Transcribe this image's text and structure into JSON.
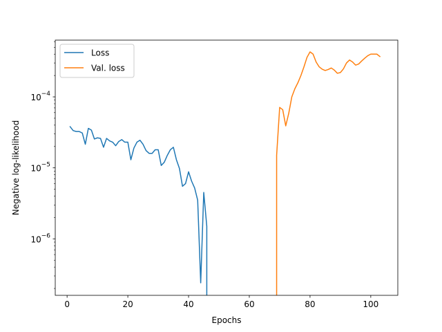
{
  "chart_data": {
    "type": "line",
    "title": "",
    "xlabel": "Epochs",
    "ylabel": "Negative log-likelihood",
    "xlim": [
      -3.9,
      108.9
    ],
    "ylim": [
      1.6e-07,
      0.00063
    ],
    "yscale": "log",
    "grid": false,
    "legend_position": "top-left",
    "x_ticks": [
      0,
      20,
      40,
      60,
      80,
      100
    ],
    "x_tick_labels": [
      "0",
      "20",
      "40",
      "60",
      "80",
      "100"
    ],
    "y_ticks": [
      1e-06,
      1e-05,
      0.0001
    ],
    "y_tick_labels": [
      {
        "base": "10",
        "exp": "−6"
      },
      {
        "base": "10",
        "exp": "−5"
      },
      {
        "base": "10",
        "exp": "−4"
      }
    ],
    "series": [
      {
        "name": "Loss",
        "color": "#1f77b4",
        "x": [
          1,
          2,
          3,
          4,
          5,
          6,
          7,
          8,
          9,
          10,
          11,
          12,
          13,
          14,
          15,
          16,
          17,
          18,
          19,
          20,
          21,
          22,
          23,
          24,
          25,
          26,
          27,
          28,
          29,
          30,
          31,
          32,
          33,
          34,
          35,
          36,
          37,
          38,
          39,
          40,
          41,
          42,
          43,
          44,
          45,
          46,
          46
        ],
        "y": [
          3.8e-05,
          3.35e-05,
          3.25e-05,
          3.25e-05,
          3.1e-05,
          2.15e-05,
          3.6e-05,
          3.4e-05,
          2.55e-05,
          2.65e-05,
          2.6e-05,
          1.95e-05,
          2.6e-05,
          2.4e-05,
          2.3e-05,
          2.05e-05,
          2.35e-05,
          2.5e-05,
          2.3e-05,
          2.3e-05,
          1.3e-05,
          1.9e-05,
          2.3e-05,
          2.45e-05,
          2.15e-05,
          1.75e-05,
          1.6e-05,
          1.6e-05,
          1.8e-05,
          1.8e-05,
          1.08e-05,
          1.2e-05,
          1.5e-05,
          1.8e-05,
          1.95e-05,
          1.3e-05,
          9.8e-06,
          5.5e-06,
          6e-06,
          8.8e-06,
          6.5e-06,
          5.2e-06,
          3.5e-06,
          2.4e-07,
          4.5e-06,
          1.5e-06,
          1.6e-07
        ]
      },
      {
        "name": "Val. loss",
        "color": "#ff7f0e",
        "x": [
          69,
          69,
          70,
          71,
          72,
          73,
          74,
          75,
          76,
          77,
          78,
          79,
          80,
          81,
          82,
          83,
          84,
          85,
          86,
          87,
          88,
          89,
          90,
          91,
          92,
          93,
          94,
          95,
          96,
          97,
          98,
          99,
          100,
          101,
          102,
          103
        ],
        "y": [
          1.6e-07,
          1.5e-05,
          7.1e-05,
          6.6e-05,
          3.9e-05,
          5.9e-05,
          0.0001,
          0.00013,
          0.000158,
          0.0002,
          0.000265,
          0.00036,
          0.00043,
          0.0004,
          0.00031,
          0.000265,
          0.000245,
          0.000235,
          0.000243,
          0.000255,
          0.000238,
          0.000215,
          0.00022,
          0.000248,
          0.0003,
          0.00033,
          0.00031,
          0.00028,
          0.00029,
          0.00032,
          0.00035,
          0.00038,
          0.0004,
          0.0004,
          0.0004,
          0.00037
        ]
      }
    ]
  }
}
